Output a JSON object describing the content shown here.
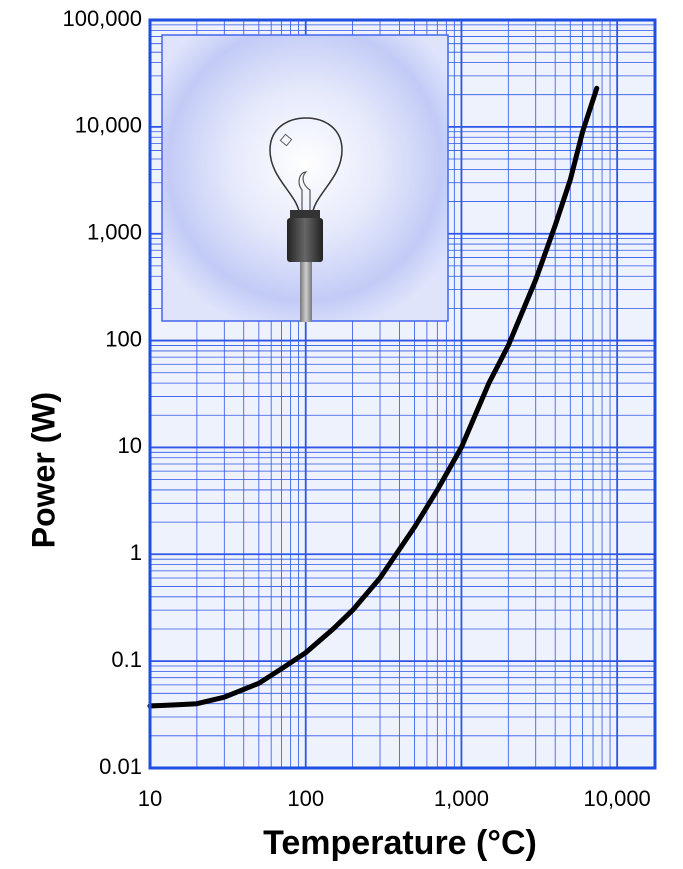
{
  "chart_data": {
    "type": "line",
    "x_label": "Temperature (°C)",
    "y_label": "Power (W)",
    "x": [
      10,
      15,
      20,
      30,
      50,
      70,
      100,
      150,
      200,
      300,
      500,
      700,
      1000,
      1500,
      2000,
      3000,
      4000,
      5000,
      6000,
      7400
    ],
    "values": [
      0.038,
      0.039,
      0.04,
      0.046,
      0.062,
      0.085,
      0.12,
      0.2,
      0.3,
      0.6,
      1.8,
      4,
      10,
      40,
      90,
      370,
      1200,
      3200,
      9000,
      23000
    ],
    "color": "#000000",
    "xlog": true,
    "ylog": true,
    "xlim": [
      10,
      17500
    ],
    "ylim": [
      0.01,
      100000
    ],
    "xticks": [
      10,
      100,
      {
        "value": 1000,
        "label": "1,000"
      },
      {
        "value": 10000,
        "label": "10,000"
      }
    ],
    "yticks": [
      0.01,
      0.1,
      1,
      10,
      100,
      {
        "value": 1000,
        "label": "1,000"
      },
      {
        "value": 10000,
        "label": "10,000"
      },
      {
        "value": 100000,
        "label": "100,000"
      }
    ],
    "grid": true,
    "minor_grid": true,
    "grid_color": "#2f55e8",
    "border_color": "#1f4fe0"
  }
}
